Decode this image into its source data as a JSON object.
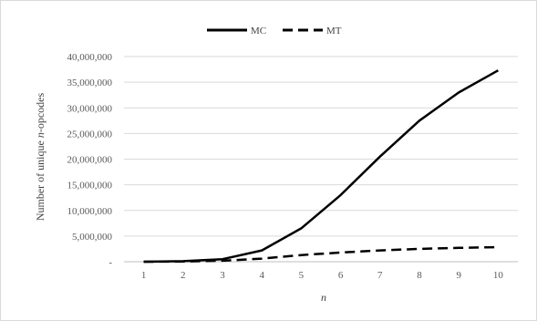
{
  "chart_data": {
    "type": "line",
    "x": [
      1,
      2,
      3,
      4,
      5,
      6,
      7,
      8,
      9,
      10
    ],
    "xlabel": "n",
    "ylabel_prefix": "Number of unique ",
    "ylabel_italic": "n",
    "ylabel_suffix": "-opcodes",
    "ylim": [
      0,
      40000000
    ],
    "yticks": [
      0,
      5000000,
      10000000,
      15000000,
      20000000,
      25000000,
      30000000,
      35000000,
      40000000
    ],
    "ytick_labels": [
      "-",
      "5,000,000",
      "10,000,000",
      "15,000,000",
      "20,000,000",
      "25,000,000",
      "30,000,000",
      "35,000,000",
      "40,000,000"
    ],
    "xtick_labels": [
      "1",
      "2",
      "3",
      "4",
      "5",
      "6",
      "7",
      "8",
      "9",
      "10"
    ],
    "grid": true,
    "legend_position": "top-center",
    "series": [
      {
        "name": "MC",
        "style": "solid",
        "color": "#000000",
        "values": [
          0,
          100000,
          500000,
          2200000,
          6500000,
          13000000,
          20500000,
          27500000,
          33000000,
          37300000
        ]
      },
      {
        "name": "MT",
        "style": "dashed",
        "color": "#000000",
        "values": [
          0,
          30000,
          200000,
          600000,
          1300000,
          1800000,
          2200000,
          2500000,
          2700000,
          2850000
        ]
      }
    ]
  }
}
